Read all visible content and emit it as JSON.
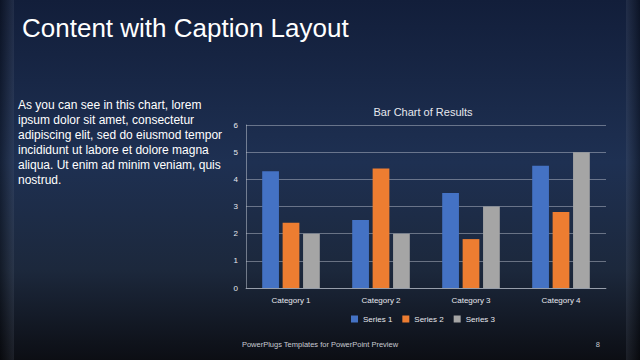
{
  "slide": {
    "title": "Content with Caption Layout",
    "caption": "As you can see in this chart, lorem ipsum dolor sit amet, consectetur adipiscing elit, sed do eiusmod tempor incididunt ut labore et dolore magna aliqua. Ut enim ad minim veniam, quis nostrud.",
    "footer": "PowerPlugs Templates for PowerPoint Preview",
    "page": "8"
  },
  "chart_data": {
    "type": "bar",
    "title": "Bar Chart of Results",
    "categories": [
      "Category 1",
      "Category 2",
      "Category 3",
      "Category 4"
    ],
    "series": [
      {
        "name": "Series 1",
        "color": "#4472c4",
        "values": [
          4.3,
          2.5,
          3.5,
          4.5
        ]
      },
      {
        "name": "Series 2",
        "color": "#ed7d31",
        "values": [
          2.4,
          4.4,
          1.8,
          2.8
        ]
      },
      {
        "name": "Series 3",
        "color": "#a5a5a5",
        "values": [
          2,
          2,
          3,
          5
        ]
      }
    ],
    "ylim": [
      0,
      6
    ],
    "yticks": [
      0,
      1,
      2,
      3,
      4,
      5,
      6
    ],
    "grid": true,
    "legend": "bottom"
  }
}
